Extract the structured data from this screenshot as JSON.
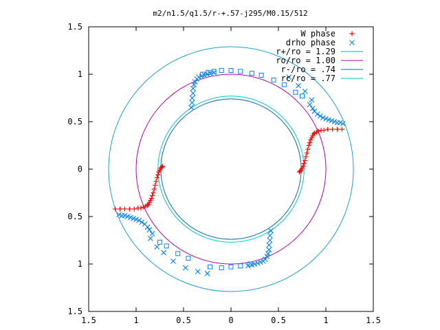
{
  "chart_data": {
    "type": "scatter",
    "title": "m2/n1.5/q1.5/r-+.57-j295/M0.15/512",
    "xlabel": "",
    "ylabel": "",
    "xlim": [
      -1.5,
      1.5
    ],
    "ylim": [
      -1.5,
      1.5
    ],
    "x_tick_values": [
      -1.5,
      -1,
      -0.5,
      0,
      0.5,
      1,
      1.5
    ],
    "x_tick_labels": [
      "1.5",
      "1",
      "0.5",
      "0",
      "0.5",
      "1",
      "1.5"
    ],
    "y_tick_values": [
      1.5,
      1,
      0.5,
      0,
      -0.5,
      -1,
      -1.5
    ],
    "y_tick_labels": [
      "1.5",
      "1",
      "0.5",
      "0",
      "0.5",
      "1",
      "1.5"
    ],
    "grid": false,
    "legend_position": "top-right",
    "legend": [
      {
        "label": "W phase",
        "kind": "plus",
        "color": "#ff0000"
      },
      {
        "label": "drho phase",
        "kind": "cross",
        "color": "#0080ff"
      },
      {
        "label": "r+/ro = 1.29",
        "kind": "line",
        "color": "#1aa0d8"
      },
      {
        "label": "ro/ro = 1.00",
        "kind": "line",
        "color": "#b000b0"
      },
      {
        "label": "r-/ro = .74",
        "kind": "line",
        "color": "#0a6ab8"
      },
      {
        "label": "rc/ro = .77",
        "kind": "line",
        "color": "#00c8c8"
      }
    ],
    "circles": [
      {
        "name": "r+/ro = 1.29",
        "radius": 1.29,
        "color": "#1aa0d8"
      },
      {
        "name": "ro/ro = 1.00",
        "radius": 1.0,
        "color": "#b000b0"
      },
      {
        "name": "r-/ro = .74",
        "radius": 0.74,
        "color": "#0a6ab8"
      },
      {
        "name": "rc/ro = .77",
        "radius": 0.77,
        "color": "#00c8c8"
      }
    ],
    "series": [
      {
        "name": "W phase",
        "marker": "plus",
        "color": "#ff0000",
        "x": [
          0.72,
          0.73,
          0.74,
          0.75,
          0.76,
          0.77,
          0.78,
          0.79,
          0.8,
          0.81,
          0.82,
          0.83,
          0.84,
          0.85,
          0.86,
          0.87,
          0.88,
          0.9,
          0.92,
          0.95,
          0.98,
          1.02,
          1.07,
          1.12,
          1.17,
          -0.72,
          -0.73,
          -0.74,
          -0.75,
          -0.76,
          -0.77,
          -0.78,
          -0.79,
          -0.8,
          -0.81,
          -0.82,
          -0.83,
          -0.84,
          -0.85,
          -0.86,
          -0.87,
          -0.88,
          -0.9,
          -0.92,
          -0.95,
          -0.98,
          -1.02,
          -1.07,
          -1.12,
          -1.17,
          -1.22
        ],
        "y": [
          -0.03,
          -0.02,
          -0.01,
          0.01,
          0.03,
          0.06,
          0.09,
          0.13,
          0.17,
          0.21,
          0.25,
          0.28,
          0.31,
          0.33,
          0.35,
          0.37,
          0.38,
          0.39,
          0.4,
          0.41,
          0.41,
          0.42,
          0.42,
          0.42,
          0.42,
          0.03,
          0.02,
          0.01,
          -0.01,
          -0.03,
          -0.06,
          -0.09,
          -0.13,
          -0.17,
          -0.21,
          -0.25,
          -0.28,
          -0.31,
          -0.33,
          -0.35,
          -0.37,
          -0.38,
          -0.39,
          -0.4,
          -0.41,
          -0.41,
          -0.42,
          -0.42,
          -0.42,
          -0.42,
          -0.42
        ]
      },
      {
        "name": "drho phase",
        "marker": "cross",
        "color": "#0080ff",
        "x": [
          -0.42,
          -0.41,
          -0.41,
          -0.4,
          -0.4,
          -0.39,
          -0.38,
          -0.36,
          -0.34,
          -0.31,
          -0.28,
          -0.25,
          -0.22,
          -0.18,
          0.42,
          0.41,
          0.41,
          0.4,
          0.4,
          0.39,
          0.38,
          0.36,
          0.34,
          0.31,
          0.28,
          0.25,
          0.22,
          0.18,
          0.83,
          0.86,
          0.88,
          0.91,
          0.94,
          0.97,
          1.0,
          1.03,
          1.06,
          1.09,
          1.12,
          1.15,
          1.18,
          -0.83,
          -0.86,
          -0.88,
          -0.91,
          -0.94,
          -0.97,
          -1.0,
          -1.03,
          -1.06,
          -1.09,
          -1.12,
          -1.15,
          -1.18,
          -0.85,
          -0.78,
          -0.71,
          -0.61,
          -0.48,
          -0.35,
          -0.25,
          0.85,
          0.78,
          0.71,
          0.61
        ],
        "y": [
          0.65,
          0.7,
          0.75,
          0.8,
          0.85,
          0.89,
          0.92,
          0.95,
          0.97,
          0.98,
          0.99,
          1.0,
          1.01,
          1.02,
          -0.65,
          -0.7,
          -0.75,
          -0.8,
          -0.85,
          -0.89,
          -0.92,
          -0.95,
          -0.97,
          -0.98,
          -0.99,
          -1.0,
          -1.01,
          -1.02,
          0.68,
          0.64,
          0.61,
          0.58,
          0.56,
          0.54,
          0.53,
          0.52,
          0.51,
          0.5,
          0.49,
          0.49,
          0.48,
          -0.68,
          -0.64,
          -0.61,
          -0.58,
          -0.56,
          -0.54,
          -0.53,
          -0.52,
          -0.51,
          -0.5,
          -0.49,
          -0.49,
          -0.48,
          -0.73,
          -0.82,
          -0.88,
          -0.97,
          -1.04,
          -1.08,
          -1.1,
          0.73,
          0.82,
          0.88,
          0.97
        ]
      },
      {
        "name": "drho phase (open squares)",
        "marker": "square",
        "color": "#0080ff",
        "x": [
          -0.3,
          -0.24,
          -0.18,
          -0.1,
          0.0,
          0.1,
          0.22,
          0.32,
          0.45,
          0.56,
          0.68,
          0.75,
          0.2,
          0.1,
          0.0,
          -0.1,
          -0.22,
          -0.45,
          -0.56,
          -0.68,
          -0.75
        ],
        "y": [
          1.0,
          1.02,
          1.03,
          1.04,
          1.04,
          1.03,
          1.01,
          0.99,
          0.94,
          0.89,
          0.81,
          0.77,
          -1.0,
          -1.02,
          -1.03,
          -1.04,
          -1.03,
          -0.94,
          -0.89,
          -0.81,
          -0.77
        ]
      }
    ]
  }
}
